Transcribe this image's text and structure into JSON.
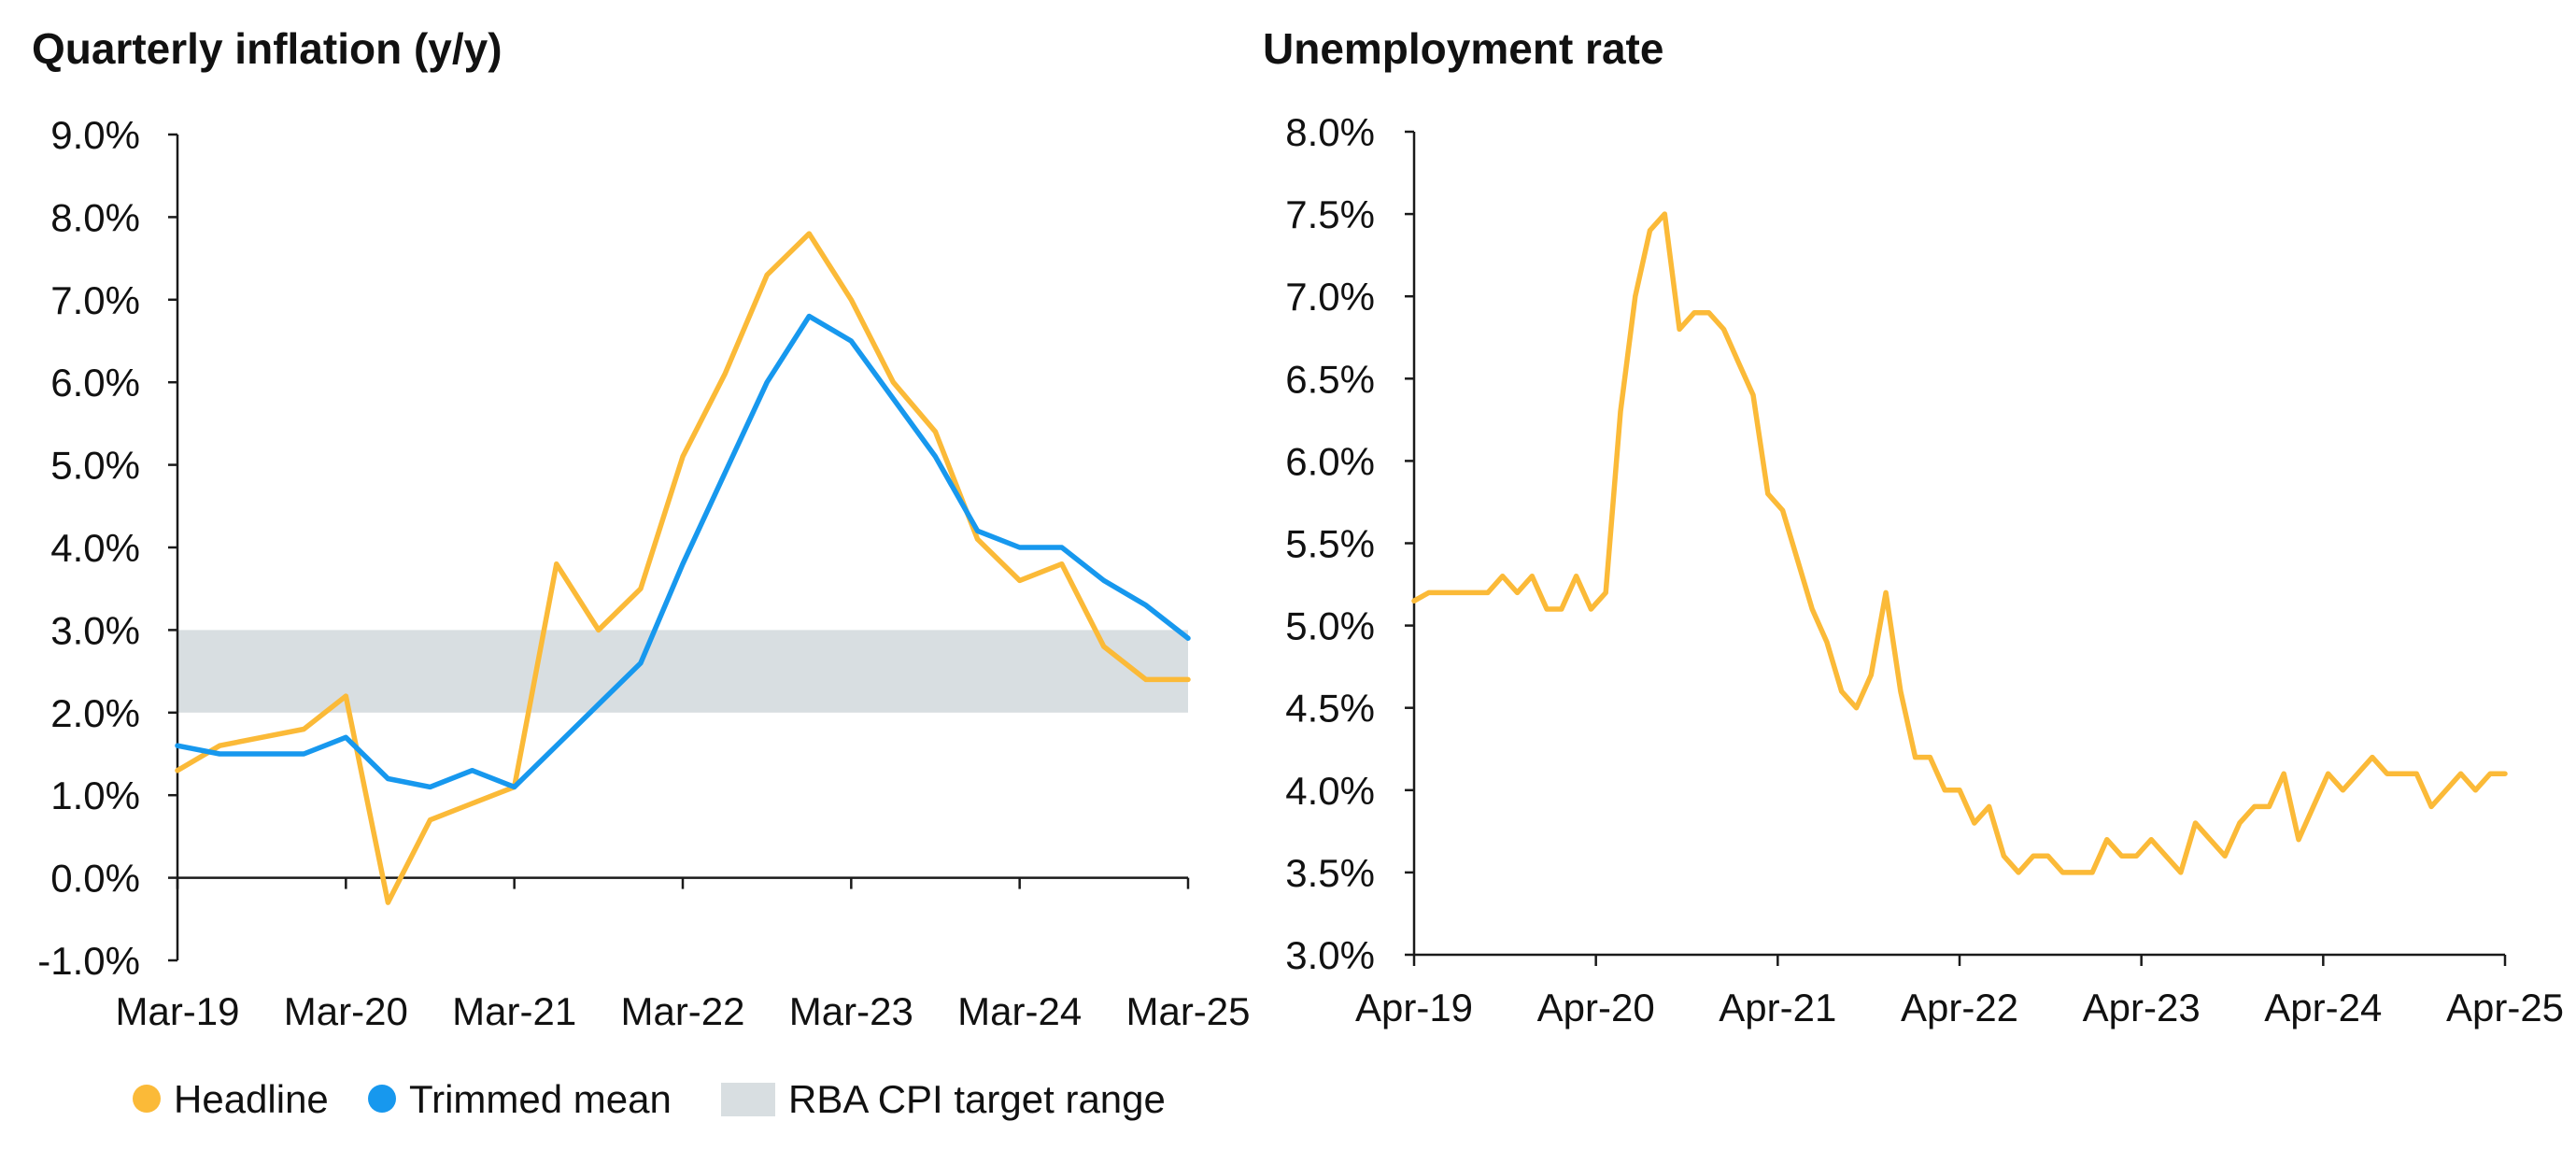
{
  "colors": {
    "headline": "#FBBA38",
    "trimmed": "#1798EE",
    "band": "#D8DEE1",
    "axis": "#1a1a1a",
    "text": "#111111"
  },
  "legend": {
    "headline": "Headline",
    "trimmed": "Trimmed mean",
    "band": "RBA CPI target range"
  },
  "chart_data": [
    {
      "type": "line",
      "title": "Quarterly inflation (y/y)",
      "xlabel": "",
      "ylabel": "",
      "x": [
        "Mar-19",
        "Jun-19",
        "Sep-19",
        "Dec-19",
        "Mar-20",
        "Jun-20",
        "Sep-20",
        "Dec-20",
        "Mar-21",
        "Jun-21",
        "Sep-21",
        "Dec-21",
        "Mar-22",
        "Jun-22",
        "Sep-22",
        "Dec-22",
        "Mar-23",
        "Jun-23",
        "Sep-23",
        "Dec-23",
        "Mar-24",
        "Jun-24",
        "Sep-24",
        "Dec-24",
        "Mar-25"
      ],
      "xticks": [
        "Mar-19",
        "Mar-20",
        "Mar-21",
        "Mar-22",
        "Mar-23",
        "Mar-24",
        "Mar-25"
      ],
      "yticks": [
        "-1.0%",
        "0.0%",
        "1.0%",
        "2.0%",
        "3.0%",
        "4.0%",
        "5.0%",
        "6.0%",
        "7.0%",
        "8.0%",
        "9.0%"
      ],
      "ylim": [
        -1,
        9
      ],
      "band": {
        "name": "RBA CPI target range",
        "from": 2,
        "to": 3
      },
      "series": [
        {
          "name": "Headline",
          "values": [
            1.3,
            1.6,
            1.7,
            1.8,
            2.2,
            -0.3,
            0.7,
            0.9,
            1.1,
            3.8,
            3.0,
            3.5,
            5.1,
            6.1,
            7.3,
            7.8,
            7.0,
            6.0,
            5.4,
            4.1,
            3.6,
            3.8,
            2.8,
            2.4,
            2.4
          ]
        },
        {
          "name": "Trimmed mean",
          "values": [
            1.6,
            1.5,
            1.5,
            1.5,
            1.7,
            1.2,
            1.1,
            1.3,
            1.1,
            1.6,
            2.1,
            2.6,
            3.8,
            4.9,
            6.0,
            6.8,
            6.5,
            5.8,
            5.1,
            4.2,
            4.0,
            4.0,
            3.6,
            3.3,
            2.9
          ]
        }
      ],
      "grid": false,
      "legend": "bottom-left"
    },
    {
      "type": "line",
      "title": "Unemployment rate",
      "xlabel": "",
      "ylabel": "",
      "x_start": "Apr-19",
      "xticks": [
        "Apr-19",
        "Apr-20",
        "Apr-21",
        "Apr-22",
        "Apr-23",
        "Apr-24",
        "Apr-25"
      ],
      "yticks": [
        "3.0%",
        "3.5%",
        "4.0%",
        "4.5%",
        "5.0%",
        "5.5%",
        "6.0%",
        "6.5%",
        "7.0%",
        "7.5%",
        "8.0%"
      ],
      "ylim": [
        3.0,
        8.0
      ],
      "series": [
        {
          "name": "",
          "values": [
            5.15,
            5.2,
            5.2,
            5.2,
            5.2,
            5.2,
            5.3,
            5.2,
            5.3,
            5.1,
            5.1,
            5.3,
            5.1,
            5.2,
            6.3,
            7.0,
            7.4,
            7.5,
            6.8,
            6.9,
            6.9,
            6.8,
            6.6,
            6.4,
            5.8,
            5.7,
            5.4,
            5.1,
            4.9,
            4.6,
            4.5,
            4.7,
            5.2,
            4.6,
            4.2,
            4.2,
            4.0,
            4.0,
            3.8,
            3.9,
            3.6,
            3.5,
            3.6,
            3.6,
            3.5,
            3.5,
            3.5,
            3.7,
            3.6,
            3.6,
            3.7,
            3.6,
            3.5,
            3.8,
            3.7,
            3.6,
            3.8,
            3.9,
            3.9,
            4.1,
            3.7,
            3.9,
            4.1,
            4.0,
            4.1,
            4.2,
            4.1,
            4.1,
            4.1,
            3.9,
            4.0,
            4.1,
            4.0,
            4.1,
            4.1
          ]
        }
      ],
      "grid": false
    }
  ]
}
